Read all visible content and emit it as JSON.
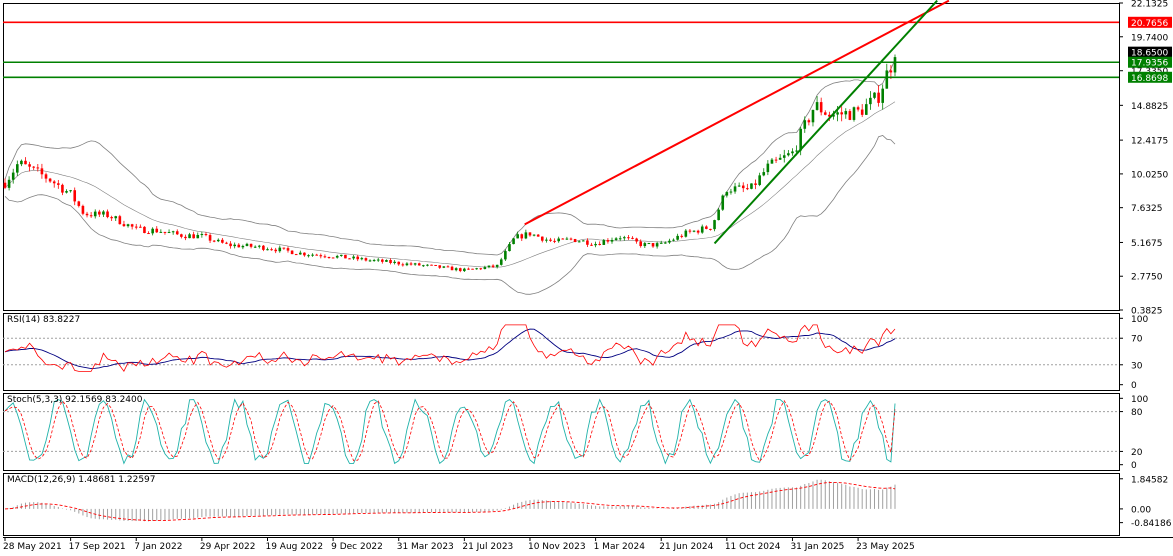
{
  "colors": {
    "up_candle": "#008000",
    "down_candle": "#ff0000",
    "bollinger": "#808080",
    "resistance_line": "#ff0000",
    "support_line": "#008000",
    "level_red": "#ff0000",
    "level_green": "#008000",
    "rsi_line": "#ff0000",
    "rsi_signal": "#000080",
    "stoch_main": "#20b2aa",
    "stoch_signal": "#ff0000",
    "macd_hist": "#a0a0a0",
    "macd_signal": "#ff0000"
  },
  "chart_data": [
    {
      "type": "candlestick",
      "panel": "price",
      "ylim": [
        0.3825,
        22.1325
      ],
      "y_ticks": [
        "22.1325",
        "19.7400",
        "17.3350",
        "14.8825",
        "12.4175",
        "10.0250",
        "7.6325",
        "5.1675",
        "2.7750",
        "0.3825"
      ],
      "price_labels": [
        {
          "text": "20.7656",
          "value": 20.7656,
          "bg": "#ff0000"
        },
        {
          "text": "18.6500",
          "value": 18.65,
          "bg": "#000000"
        },
        {
          "text": "17.9356",
          "value": 17.9356,
          "bg": "#008000"
        },
        {
          "text": "16.8698",
          "value": 16.8698,
          "bg": "#008000"
        }
      ],
      "horizontal_levels": [
        {
          "value": 20.7656,
          "color": "red"
        },
        {
          "value": 17.9356,
          "color": "green"
        },
        {
          "value": 16.8698,
          "color": "green"
        }
      ],
      "trendlines": [
        {
          "color": "red",
          "from": {
            "date": "2023-11-01",
            "value": 6.45
          },
          "to": {
            "date": "2025-10-25",
            "value": 22.3
          }
        },
        {
          "color": "green",
          "from": {
            "date": "2024-09-20",
            "value": 5.1
          },
          "to": {
            "date": "2025-10-05",
            "value": 22.3
          }
        }
      ],
      "anchors": [
        [
          "2021-05-28",
          9.4
        ],
        [
          "2021-06-20",
          10.8
        ],
        [
          "2021-08-10",
          9.7
        ],
        [
          "2021-09-17",
          8.6
        ],
        [
          "2021-10-10",
          7.2
        ],
        [
          "2021-11-20",
          7.1
        ],
        [
          "2022-01-07",
          6.1
        ],
        [
          "2022-02-15",
          6.0
        ],
        [
          "2022-03-20",
          5.7
        ],
        [
          "2022-04-29",
          5.6
        ],
        [
          "2022-06-10",
          5.0
        ],
        [
          "2022-08-19",
          4.8
        ],
        [
          "2022-10-15",
          4.4
        ],
        [
          "2022-12-09",
          4.2
        ],
        [
          "2023-02-10",
          3.9
        ],
        [
          "2023-03-31",
          3.7
        ],
        [
          "2023-05-20",
          3.5
        ],
        [
          "2023-07-21",
          3.2
        ],
        [
          "2023-09-15",
          3.5
        ],
        [
          "2023-10-15",
          5.5
        ],
        [
          "2023-11-10",
          5.8
        ],
        [
          "2023-12-20",
          5.2
        ],
        [
          "2024-01-20",
          5.4
        ],
        [
          "2024-03-01",
          5.1
        ],
        [
          "2024-04-10",
          5.6
        ],
        [
          "2024-05-20",
          5.0
        ],
        [
          "2024-06-21",
          5.0
        ],
        [
          "2024-08-01",
          5.8
        ],
        [
          "2024-09-15",
          6.3
        ],
        [
          "2024-10-11",
          9.0
        ],
        [
          "2024-11-20",
          8.9
        ],
        [
          "2024-12-20",
          10.5
        ],
        [
          "2025-01-31",
          11.5
        ],
        [
          "2025-03-10",
          14.9
        ],
        [
          "2025-04-05",
          14.2
        ],
        [
          "2025-05-23",
          14.4
        ],
        [
          "2025-06-25",
          15.4
        ],
        [
          "2025-07-15",
          17.5
        ],
        [
          "2025-07-25",
          18.3
        ]
      ],
      "bollinger": {
        "period": 20
      }
    },
    {
      "type": "line",
      "panel": "rsi",
      "title": "RSI(14) 83.8227",
      "ylim": [
        0,
        100
      ],
      "y_ticks": [
        "100",
        "70",
        "30",
        "0"
      ],
      "levels": [
        70,
        30
      ],
      "last_value": 83.8227
    },
    {
      "type": "line",
      "panel": "stochastic",
      "title": "Stoch(5,3,3) 92.1569 83.2400",
      "ylim": [
        0,
        100
      ],
      "y_ticks": [
        "100",
        "80",
        "20",
        "0"
      ],
      "levels": [
        80,
        20
      ],
      "last_values": [
        92.1569,
        83.24
      ]
    },
    {
      "type": "bar",
      "panel": "macd",
      "title": "MACD(12,26,9) 1.48681 1.22597",
      "ylim": [
        -0.84186,
        1.84582
      ],
      "y_ticks": [
        "1.84582",
        "0.00",
        "-0.84186"
      ],
      "last_values": [
        1.48681,
        1.22597
      ]
    }
  ],
  "x_axis": {
    "start_date": "2021-05-28",
    "end_date": "2025-07-25",
    "tick_labels": [
      {
        "text": "28 May 2021",
        "date": "2021-05-28"
      },
      {
        "text": "17 Sep 2021",
        "date": "2021-09-17"
      },
      {
        "text": "7 Jan 2022",
        "date": "2022-01-07"
      },
      {
        "text": "29 Apr 2022",
        "date": "2022-04-29"
      },
      {
        "text": "19 Aug 2022",
        "date": "2022-08-19"
      },
      {
        "text": "9 Dec 2022",
        "date": "2022-12-09"
      },
      {
        "text": "31 Mar 2023",
        "date": "2023-03-31"
      },
      {
        "text": "21 Jul 2023",
        "date": "2023-07-21"
      },
      {
        "text": "10 Nov 2023",
        "date": "2023-11-10"
      },
      {
        "text": "1 Mar 2024",
        "date": "2024-03-01"
      },
      {
        "text": "21 Jun 2024",
        "date": "2024-06-21"
      },
      {
        "text": "11 Oct 2024",
        "date": "2024-10-11"
      },
      {
        "text": "31 Jan 2025",
        "date": "2025-01-31"
      },
      {
        "text": "23 May 2025",
        "date": "2025-05-23"
      }
    ]
  }
}
